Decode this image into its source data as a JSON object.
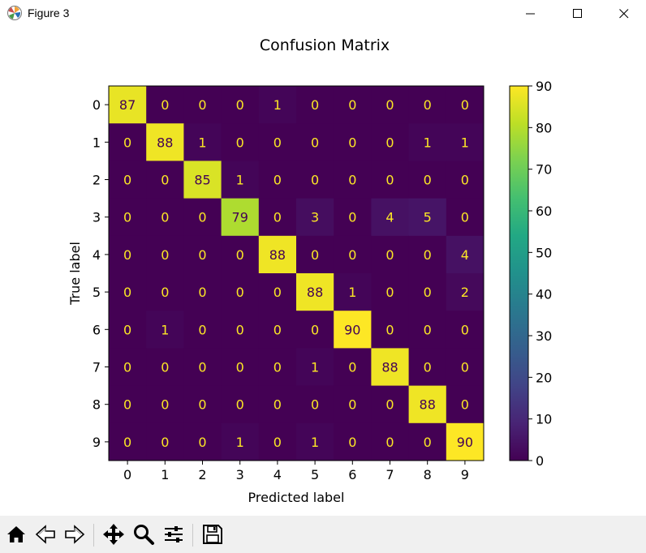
{
  "window": {
    "title": "Figure 3"
  },
  "toolbar": {
    "tools": [
      "home-icon",
      "back-arrow-icon",
      "forward-arrow-icon",
      "pan-icon",
      "zoom-icon",
      "configure-subplots-icon",
      "save-icon"
    ]
  },
  "chart_data": {
    "type": "heatmap",
    "title": "Confusion Matrix",
    "xlabel": "Predicted label",
    "ylabel": "True label",
    "x_ticks": [
      "0",
      "1",
      "2",
      "3",
      "4",
      "5",
      "6",
      "7",
      "8",
      "9"
    ],
    "y_ticks": [
      "0",
      "1",
      "2",
      "3",
      "4",
      "5",
      "6",
      "7",
      "8",
      "9"
    ],
    "matrix": [
      [
        87,
        0,
        0,
        0,
        1,
        0,
        0,
        0,
        0,
        0
      ],
      [
        0,
        88,
        1,
        0,
        0,
        0,
        0,
        0,
        1,
        1
      ],
      [
        0,
        0,
        85,
        1,
        0,
        0,
        0,
        0,
        0,
        0
      ],
      [
        0,
        0,
        0,
        79,
        0,
        3,
        0,
        4,
        5,
        0
      ],
      [
        0,
        0,
        0,
        0,
        88,
        0,
        0,
        0,
        0,
        4
      ],
      [
        0,
        0,
        0,
        0,
        0,
        88,
        1,
        0,
        0,
        2
      ],
      [
        0,
        1,
        0,
        0,
        0,
        0,
        90,
        0,
        0,
        0
      ],
      [
        0,
        0,
        0,
        0,
        0,
        1,
        0,
        88,
        0,
        0
      ],
      [
        0,
        0,
        0,
        0,
        0,
        0,
        0,
        0,
        88,
        0
      ],
      [
        0,
        0,
        0,
        1,
        0,
        1,
        0,
        0,
        0,
        90
      ]
    ],
    "colormap": "viridis",
    "vmin": 0,
    "vmax": 90,
    "colorbar_ticks": [
      "0",
      "10",
      "20",
      "30",
      "40",
      "50",
      "60",
      "70",
      "80",
      "90"
    ],
    "colorbar_tick_values": [
      0,
      10,
      20,
      30,
      40,
      50,
      60,
      70,
      80,
      90
    ],
    "annotation_colors": {
      "on_dark": "#fde725",
      "on_light": "#440154"
    },
    "legend": "colorbar-right"
  }
}
